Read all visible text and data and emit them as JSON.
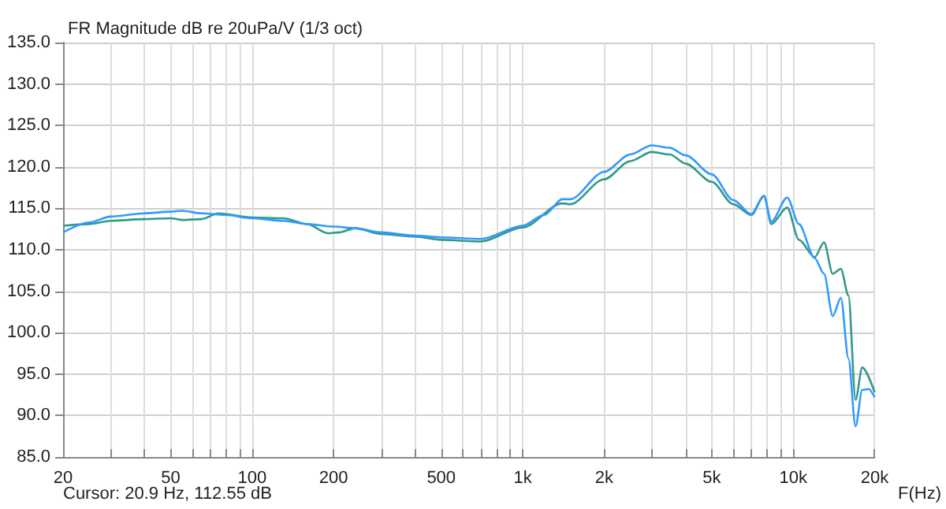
{
  "chart_data": {
    "type": "line",
    "title": "FR Magnitude dB re 20uPa/V (1/3 oct)",
    "xlabel": "F(Hz)",
    "annotations": [
      "Cursor: 20.9 Hz, 112.55 dB"
    ],
    "log": "x",
    "grid": true,
    "marker": "none",
    "line_style": "solid",
    "xlim": [
      20,
      20000
    ],
    "xticks": [
      20,
      {
        "value": 30,
        "label": null
      },
      {
        "value": 40,
        "label": null
      },
      50,
      {
        "value": 60,
        "label": null
      },
      {
        "value": 70,
        "label": null
      },
      {
        "value": 80,
        "label": null
      },
      {
        "value": 90,
        "label": null
      },
      100,
      200,
      {
        "value": 300,
        "label": null
      },
      {
        "value": 400,
        "label": null
      },
      500,
      {
        "value": 600,
        "label": null
      },
      {
        "value": 700,
        "label": null
      },
      {
        "value": 800,
        "label": null
      },
      {
        "value": 900,
        "label": null
      },
      {
        "value": 1000,
        "label": "1k"
      },
      {
        "value": 2000,
        "label": "2k"
      },
      {
        "value": 3000,
        "label": null
      },
      {
        "value": 4000,
        "label": null
      },
      {
        "value": 5000,
        "label": "5k"
      },
      {
        "value": 6000,
        "label": null
      },
      {
        "value": 7000,
        "label": null
      },
      {
        "value": 8000,
        "label": null
      },
      {
        "value": 9000,
        "label": null
      },
      {
        "value": 10000,
        "label": "10k"
      },
      {
        "value": 20000,
        "label": "20k"
      }
    ],
    "ylim": [
      85,
      135
    ],
    "yticks": [
      {
        "value": 85,
        "label": "85.0"
      },
      {
        "value": 90,
        "label": "90.0"
      },
      {
        "value": 95,
        "label": "95.0"
      },
      {
        "value": 100,
        "label": "100.0"
      },
      {
        "value": 105,
        "label": "105.0"
      },
      {
        "value": 110,
        "label": "110.0"
      },
      {
        "value": 115,
        "label": "115.0"
      },
      {
        "value": 120,
        "label": "120.0"
      },
      {
        "value": 125,
        "label": "125.0"
      },
      {
        "value": 130,
        "label": "130.0"
      },
      {
        "value": 135,
        "label": "135.0"
      }
    ],
    "series": [
      {
        "color": "#339988",
        "x": [
          20,
          25,
          30,
          40,
          50,
          55,
          65,
          75,
          100,
          130,
          160,
          190,
          210,
          240,
          300,
          400,
          500,
          700,
          1000,
          1400,
          1500,
          2000,
          2500,
          3000,
          3500,
          4000,
          5000,
          6000,
          7000,
          7800,
          8300,
          9500,
          10500,
          12000,
          13000,
          14000,
          15000,
          16000,
          17000,
          18000,
          20000
        ],
        "values": [
          112.9,
          113.1,
          113.5,
          113.7,
          113.8,
          113.6,
          113.7,
          114.4,
          113.9,
          113.8,
          113.1,
          112.0,
          112.1,
          112.6,
          111.9,
          111.6,
          111.2,
          111.0,
          112.7,
          115.6,
          115.5,
          118.5,
          120.7,
          121.8,
          121.5,
          120.4,
          118.2,
          115.5,
          114.2,
          116.5,
          113.1,
          115.1,
          111.2,
          109.1,
          110.9,
          107.1,
          107.7,
          104.5,
          91.9,
          95.8,
          92.8
        ]
      },
      {
        "color": "#3399ff",
        "x": [
          20,
          25,
          30,
          40,
          50,
          55,
          65,
          80,
          100,
          130,
          160,
          200,
          240,
          300,
          400,
          500,
          700,
          1000,
          1200,
          1400,
          1500,
          2000,
          2500,
          3000,
          3500,
          4000,
          5000,
          6000,
          7000,
          7800,
          8300,
          9500,
          10500,
          12000,
          13000,
          14000,
          15000,
          16000,
          17000,
          18000,
          19000,
          20000
        ],
        "values": [
          112.1,
          113.3,
          114.0,
          114.4,
          114.6,
          114.7,
          114.4,
          114.2,
          113.8,
          113.5,
          113.1,
          112.8,
          112.6,
          112.1,
          111.7,
          111.5,
          111.3,
          112.9,
          114.2,
          116.1,
          116.1,
          119.4,
          121.5,
          122.6,
          122.3,
          121.4,
          119.1,
          116.0,
          114.3,
          116.5,
          113.4,
          116.3,
          113.1,
          109.0,
          107.1,
          102.0,
          104.2,
          96.9,
          88.7,
          93.1,
          93.2,
          92.2
        ]
      }
    ]
  }
}
